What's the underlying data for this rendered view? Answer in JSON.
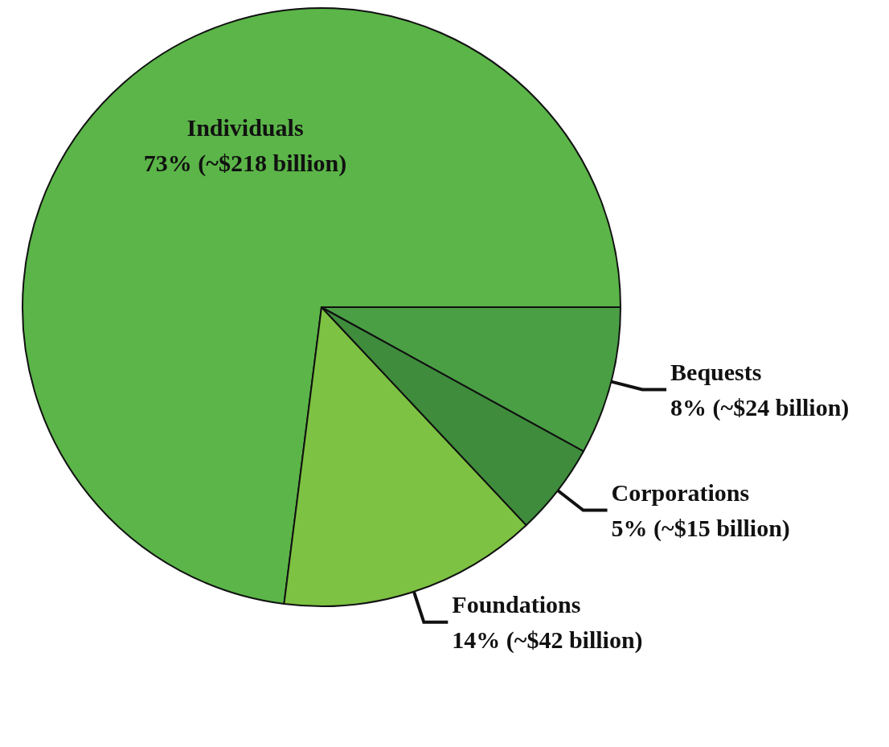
{
  "chart_data": {
    "type": "pie",
    "categories": [
      "Individuals",
      "Foundations",
      "Corporations",
      "Bequests"
    ],
    "values": [
      73,
      14,
      5,
      8
    ],
    "value_labels": [
      "73% (~$218 billion)",
      "14% (~$42 billion)",
      "5% (~$15 billion)",
      "8% (~$24 billion)"
    ],
    "colors": [
      "#5bb548",
      "#7dc242",
      "#3e8c3c",
      "#4a9f45"
    ],
    "legend": false
  }
}
